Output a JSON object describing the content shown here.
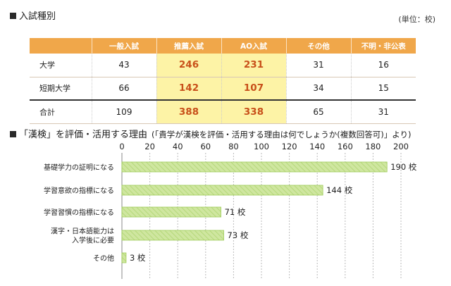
{
  "table_section": {
    "title": "入試種別",
    "unit": "(単位：校)",
    "columns": [
      "一般入試",
      "推薦入試",
      "AO入試",
      "その他",
      "不明・非公表"
    ],
    "rows": [
      {
        "label": "大学",
        "values": [
          "43",
          "246",
          "231",
          "31",
          "16"
        ]
      },
      {
        "label": "短期大学",
        "values": [
          "66",
          "142",
          "107",
          "34",
          "15"
        ]
      },
      {
        "label": "合計",
        "values": [
          "109",
          "388",
          "338",
          "65",
          "31"
        ]
      }
    ],
    "highlight_color": "#fdf3a6",
    "header_color": "#f0a74a",
    "highlight_text_color": "#c8501a"
  },
  "chart_section": {
    "title": "「漢検」を評価・活用する理由",
    "subtitle": "(「貴学が漢検を評価・活用する理由は何でしょうか(複数回答可)」より)"
  },
  "chart_data": {
    "type": "bar",
    "orientation": "horizontal",
    "categories": [
      [
        "基礎学力の証明になる"
      ],
      [
        "学習意欲の指標になる"
      ],
      [
        "学習習慣の指標になる"
      ],
      [
        "漢字・日本語能力は",
        "入学後に必要"
      ],
      [
        "その他"
      ]
    ],
    "values": [
      190,
      144,
      71,
      73,
      3
    ],
    "value_labels": [
      "190 校",
      "144 校",
      "71 校",
      "73 校",
      "3 校"
    ],
    "xlim": [
      0,
      200
    ],
    "xticks": [
      "0",
      "20",
      "40",
      "60",
      "80",
      "100",
      "120",
      "140",
      "160",
      "180",
      "200"
    ],
    "title": "「漢検」を評価・活用する理由",
    "xlabel": "",
    "ylabel": "",
    "grid": true,
    "bar_color": "#cfe6a0",
    "bar_border_color": "#9fcc5a"
  }
}
